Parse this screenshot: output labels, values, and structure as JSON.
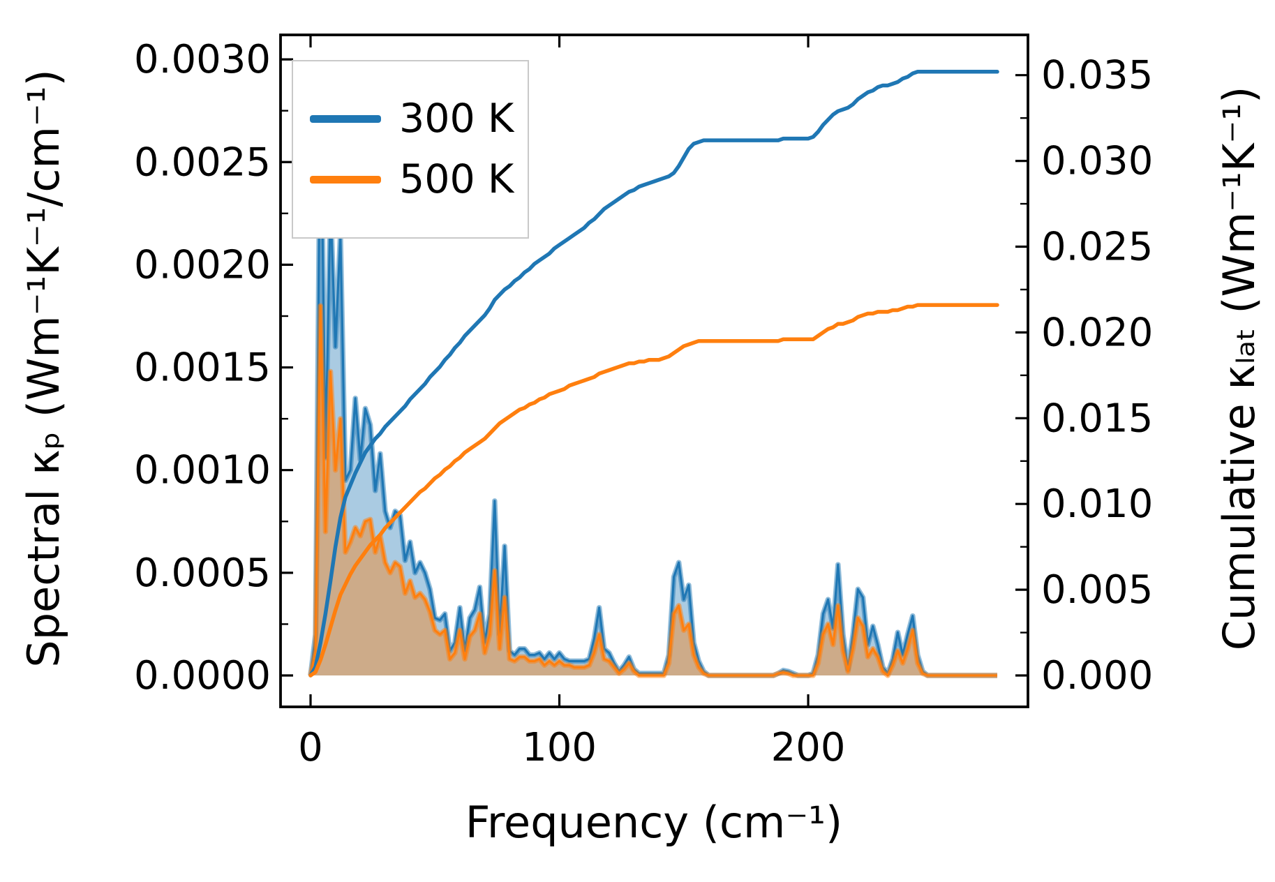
{
  "figure": {
    "background": "#ffffff",
    "axes": {
      "x": {
        "label": "Frequency (cm⁻¹)",
        "ticks": [
          {
            "value": 0,
            "label": "0"
          },
          {
            "value": 100,
            "label": "100"
          },
          {
            "value": 200,
            "label": "200"
          }
        ],
        "lim": [
          -12.1,
          288.4
        ]
      },
      "y_left": {
        "label": "Spectral κₚ (Wm⁻¹K⁻¹/cm⁻¹)",
        "ticks": [
          {
            "value": 0.0,
            "label": "0.0000"
          },
          {
            "value": 0.0005,
            "label": "0.0005"
          },
          {
            "value": 0.001,
            "label": "0.0010"
          },
          {
            "value": 0.0015,
            "label": "0.0015"
          },
          {
            "value": 0.002,
            "label": "0.0020"
          },
          {
            "value": 0.0025,
            "label": "0.0025"
          },
          {
            "value": 0.003,
            "label": "0.0030"
          }
        ],
        "minor_step": 0.00025,
        "lim": [
          -0.000153,
          0.003119
        ]
      },
      "y_right": {
        "label": "Cumulative κₗₐₜ (Wm⁻¹K⁻¹)",
        "ticks": [
          {
            "value": 0.0,
            "label": "0.000"
          },
          {
            "value": 0.005,
            "label": "0.005"
          },
          {
            "value": 0.01,
            "label": "0.010"
          },
          {
            "value": 0.015,
            "label": "0.015"
          },
          {
            "value": 0.02,
            "label": "0.020"
          },
          {
            "value": 0.025,
            "label": "0.025"
          },
          {
            "value": 0.03,
            "label": "0.030"
          },
          {
            "value": 0.035,
            "label": "0.035"
          }
        ],
        "minor_step": 0.0025,
        "lim": [
          -0.00183,
          0.03735
        ]
      }
    },
    "legend": {
      "items": [
        {
          "label": "300 K",
          "color": "#1f77b4"
        },
        {
          "label": "500 K",
          "color": "#ff7f0e"
        }
      ]
    }
  },
  "chart_data": {
    "type": "composite",
    "title": "",
    "xlabel": "Frequency (cm⁻¹)",
    "ylabel_left": "Spectral κₚ (Wm⁻¹K⁻¹/cm⁻¹)",
    "ylabel_right": "Cumulative κₗₐₜ (Wm⁻¹K⁻¹)",
    "xlim": [
      -12.1,
      288.4
    ],
    "ylim_left": [
      0,
      0.003
    ],
    "ylim_right": [
      0,
      0.035
    ],
    "grid": false,
    "legend_position": "upper left",
    "x": [
      0,
      2,
      4,
      6,
      8,
      10,
      12,
      14,
      16,
      18,
      20,
      22,
      24,
      26,
      28,
      30,
      32,
      34,
      36,
      38,
      40,
      42,
      44,
      46,
      48,
      50,
      52,
      54,
      56,
      58,
      60,
      62,
      64,
      66,
      68,
      70,
      72,
      74,
      76,
      78,
      80,
      82,
      84,
      86,
      88,
      90,
      92,
      94,
      96,
      98,
      100,
      102,
      104,
      106,
      108,
      110,
      112,
      114,
      116,
      118,
      120,
      122,
      124,
      126,
      128,
      130,
      132,
      134,
      136,
      138,
      140,
      142,
      144,
      146,
      148,
      150,
      152,
      154,
      156,
      158,
      160,
      162,
      164,
      166,
      168,
      170,
      172,
      174,
      176,
      178,
      180,
      182,
      184,
      186,
      188,
      190,
      192,
      194,
      196,
      198,
      200,
      202,
      204,
      206,
      208,
      210,
      212,
      214,
      216,
      218,
      220,
      222,
      224,
      226,
      228,
      230,
      232,
      234,
      236,
      238,
      240,
      242,
      244,
      246,
      248,
      250,
      252,
      254,
      256,
      258,
      260,
      262,
      264,
      266,
      268,
      270,
      272,
      274,
      276
    ],
    "series": [
      {
        "name": "300 K spectral",
        "legend": "300 K",
        "type": "area",
        "axis": "left",
        "color": "#1f77b4",
        "values": [
          0,
          0.0002,
          0.00293,
          0.00106,
          0.00231,
          0.0016,
          0.00215,
          0.00095,
          0.001,
          0.00135,
          0.00105,
          0.0013,
          0.00122,
          0.0009,
          0.00108,
          0.0008,
          0.00072,
          0.0008,
          0.00078,
          0.00056,
          0.00065,
          0.0005,
          0.00055,
          0.0005,
          0.00042,
          0.00028,
          0.00027,
          0.0003,
          0.00012,
          0.00016,
          0.00033,
          0.00012,
          0.00028,
          0.00032,
          0.00043,
          0.00016,
          0.0003,
          0.00085,
          0.0002,
          0.00063,
          0.00012,
          0.0001,
          0.00013,
          0.00013,
          0.0001,
          0.0001,
          0.00011,
          8e-05,
          0.00011,
          8e-05,
          0.00011,
          8e-05,
          7e-05,
          7e-05,
          7e-05,
          7e-05,
          8e-05,
          0.00018,
          0.00033,
          0.00013,
          0.00011,
          6e-05,
          2e-05,
          5e-05,
          9e-05,
          3e-05,
          1e-05,
          1e-05,
          1e-05,
          1e-05,
          1e-05,
          1e-05,
          0.0001,
          0.00048,
          0.00055,
          0.00037,
          0.00044,
          0.00016,
          7e-05,
          2e-05,
          0,
          0,
          0,
          0,
          0,
          0,
          0,
          0,
          0,
          0,
          0,
          0,
          0,
          0,
          1e-05,
          2.5e-05,
          2e-05,
          1e-05,
          0,
          0,
          0,
          1e-05,
          0.0001,
          0.0003,
          0.00037,
          0.00023,
          0.00054,
          0.0002,
          3e-05,
          0.0002,
          0.00042,
          0.00038,
          0.00015,
          0.00024,
          0.00015,
          4e-05,
          1e-05,
          8e-05,
          0.00021,
          0.0001,
          0.0002,
          0.00029,
          0.0001,
          2e-05,
          0,
          0,
          0,
          0,
          0,
          0,
          0,
          0,
          0,
          0,
          0,
          0,
          0,
          0,
          0
        ]
      },
      {
        "name": "500 K spectral",
        "legend": "500 K",
        "type": "area",
        "axis": "left",
        "color": "#ff7f0e",
        "values": [
          0,
          0.00012,
          0.0018,
          0.0007,
          0.00148,
          0.001,
          0.00125,
          0.0006,
          0.00065,
          0.00072,
          0.00068,
          0.00075,
          0.00076,
          0.0006,
          0.00068,
          0.00055,
          0.0005,
          0.00055,
          0.00053,
          0.0004,
          0.00046,
          0.00038,
          0.0004,
          0.00037,
          0.00031,
          0.00022,
          0.0002,
          0.00022,
          8e-05,
          0.00011,
          0.00022,
          8e-05,
          0.00019,
          0.00022,
          0.0003,
          0.00011,
          0.0002,
          0.00051,
          0.00013,
          0.00038,
          8e-05,
          7e-05,
          9e-05,
          9e-05,
          7e-05,
          7e-05,
          8e-05,
          5e-05,
          7e-05,
          5e-05,
          7e-05,
          5e-05,
          5e-05,
          4e-05,
          4e-05,
          4e-05,
          5e-05,
          0.00011,
          0.0002,
          8e-05,
          7e-05,
          4e-05,
          1e-05,
          3e-05,
          6e-05,
          2e-05,
          0,
          0,
          0,
          0,
          0,
          0,
          6e-05,
          0.0003,
          0.00034,
          0.00022,
          0.00025,
          0.0001,
          4e-05,
          1e-05,
          0,
          0,
          0,
          0,
          0,
          0,
          0,
          0,
          0,
          0,
          0,
          0,
          0,
          0,
          1e-05,
          1.5e-05,
          1e-05,
          0,
          0,
          0,
          0,
          0,
          6e-05,
          0.0002,
          0.00025,
          0.00015,
          0.00034,
          0.00012,
          2e-05,
          0.00013,
          0.00028,
          0.00024,
          9e-05,
          0.00013,
          9e-05,
          2e-05,
          0,
          5e-05,
          0.00012,
          6e-05,
          0.00013,
          0.00022,
          6e-05,
          1e-05,
          0,
          0,
          0,
          0,
          0,
          0,
          0,
          0,
          0,
          0,
          0,
          0,
          0,
          0,
          0
        ]
      },
      {
        "name": "300 K cumulative",
        "legend": "300 K",
        "type": "line",
        "axis": "right",
        "color": "#1f77b4",
        "values": [
          0,
          0.0005,
          0.0019,
          0.0036,
          0.0055,
          0.0075,
          0.0092,
          0.0104,
          0.0111,
          0.0118,
          0.0124,
          0.013,
          0.0134,
          0.0138,
          0.0141,
          0.0145,
          0.0148,
          0.0151,
          0.0154,
          0.0157,
          0.0161,
          0.0164,
          0.0167,
          0.017,
          0.0174,
          0.0177,
          0.018,
          0.0184,
          0.0187,
          0.0191,
          0.0194,
          0.0198,
          0.0201,
          0.0204,
          0.0207,
          0.021,
          0.0214,
          0.0219,
          0.0222,
          0.0225,
          0.0227,
          0.023,
          0.0232,
          0.0235,
          0.0237,
          0.024,
          0.0242,
          0.0244,
          0.0246,
          0.0249,
          0.0251,
          0.0253,
          0.0255,
          0.0257,
          0.0259,
          0.0261,
          0.0264,
          0.0266,
          0.0269,
          0.0272,
          0.0274,
          0.0276,
          0.0278,
          0.028,
          0.0282,
          0.0283,
          0.0285,
          0.0286,
          0.0287,
          0.0288,
          0.0289,
          0.029,
          0.0291,
          0.0293,
          0.0297,
          0.0302,
          0.0307,
          0.031,
          0.0311,
          0.0312,
          0.0312,
          0.0312,
          0.0312,
          0.0312,
          0.0312,
          0.0312,
          0.0312,
          0.0312,
          0.0312,
          0.0312,
          0.0312,
          0.0312,
          0.0312,
          0.0312,
          0.0312,
          0.0313,
          0.0313,
          0.0313,
          0.0313,
          0.0313,
          0.0313,
          0.0314,
          0.0317,
          0.0321,
          0.0324,
          0.0327,
          0.0329,
          0.033,
          0.0331,
          0.0333,
          0.0336,
          0.0338,
          0.034,
          0.0341,
          0.0343,
          0.0344,
          0.0344,
          0.0345,
          0.0346,
          0.0348,
          0.0349,
          0.0351,
          0.0352,
          0.0352,
          0.0352,
          0.0352,
          0.0352,
          0.0352,
          0.0352,
          0.0352,
          0.0352,
          0.0352,
          0.0352,
          0.0352,
          0.0352,
          0.0352,
          0.0352,
          0.0352,
          0.0352
        ]
      },
      {
        "name": "500 K cumulative",
        "legend": "500 K",
        "type": "line",
        "axis": "right",
        "color": "#ff7f0e",
        "values": [
          0,
          0.0002,
          0.0009,
          0.0018,
          0.0028,
          0.0038,
          0.0047,
          0.0053,
          0.0059,
          0.0064,
          0.0068,
          0.0072,
          0.0076,
          0.0079,
          0.0082,
          0.0086,
          0.0089,
          0.0092,
          0.0095,
          0.0098,
          0.0101,
          0.0104,
          0.0107,
          0.0109,
          0.0112,
          0.0115,
          0.0117,
          0.012,
          0.0122,
          0.0125,
          0.0127,
          0.013,
          0.0132,
          0.0134,
          0.0136,
          0.0138,
          0.0141,
          0.0144,
          0.0147,
          0.0149,
          0.0151,
          0.0153,
          0.0155,
          0.0156,
          0.0158,
          0.0159,
          0.0161,
          0.0162,
          0.0164,
          0.0165,
          0.0166,
          0.0167,
          0.0169,
          0.017,
          0.0171,
          0.0172,
          0.0173,
          0.0174,
          0.0176,
          0.0177,
          0.0178,
          0.0179,
          0.018,
          0.0181,
          0.0182,
          0.0182,
          0.0183,
          0.0183,
          0.0184,
          0.0184,
          0.0184,
          0.0185,
          0.0186,
          0.0188,
          0.019,
          0.0192,
          0.0193,
          0.0194,
          0.0195,
          0.0195,
          0.0195,
          0.0195,
          0.0195,
          0.0195,
          0.0195,
          0.0195,
          0.0195,
          0.0195,
          0.0195,
          0.0195,
          0.0195,
          0.0195,
          0.0195,
          0.0195,
          0.0195,
          0.0196,
          0.0196,
          0.0196,
          0.0196,
          0.0196,
          0.0196,
          0.0196,
          0.0198,
          0.02,
          0.0202,
          0.0203,
          0.0205,
          0.0205,
          0.0206,
          0.0207,
          0.0209,
          0.021,
          0.0211,
          0.0211,
          0.0212,
          0.0212,
          0.0212,
          0.0213,
          0.0213,
          0.0214,
          0.0215,
          0.0215,
          0.0216,
          0.0216,
          0.0216,
          0.0216,
          0.0216,
          0.0216,
          0.0216,
          0.0216,
          0.0216,
          0.0216,
          0.0216,
          0.0216,
          0.0216,
          0.0216,
          0.0216,
          0.0216,
          0.0216
        ]
      }
    ]
  }
}
